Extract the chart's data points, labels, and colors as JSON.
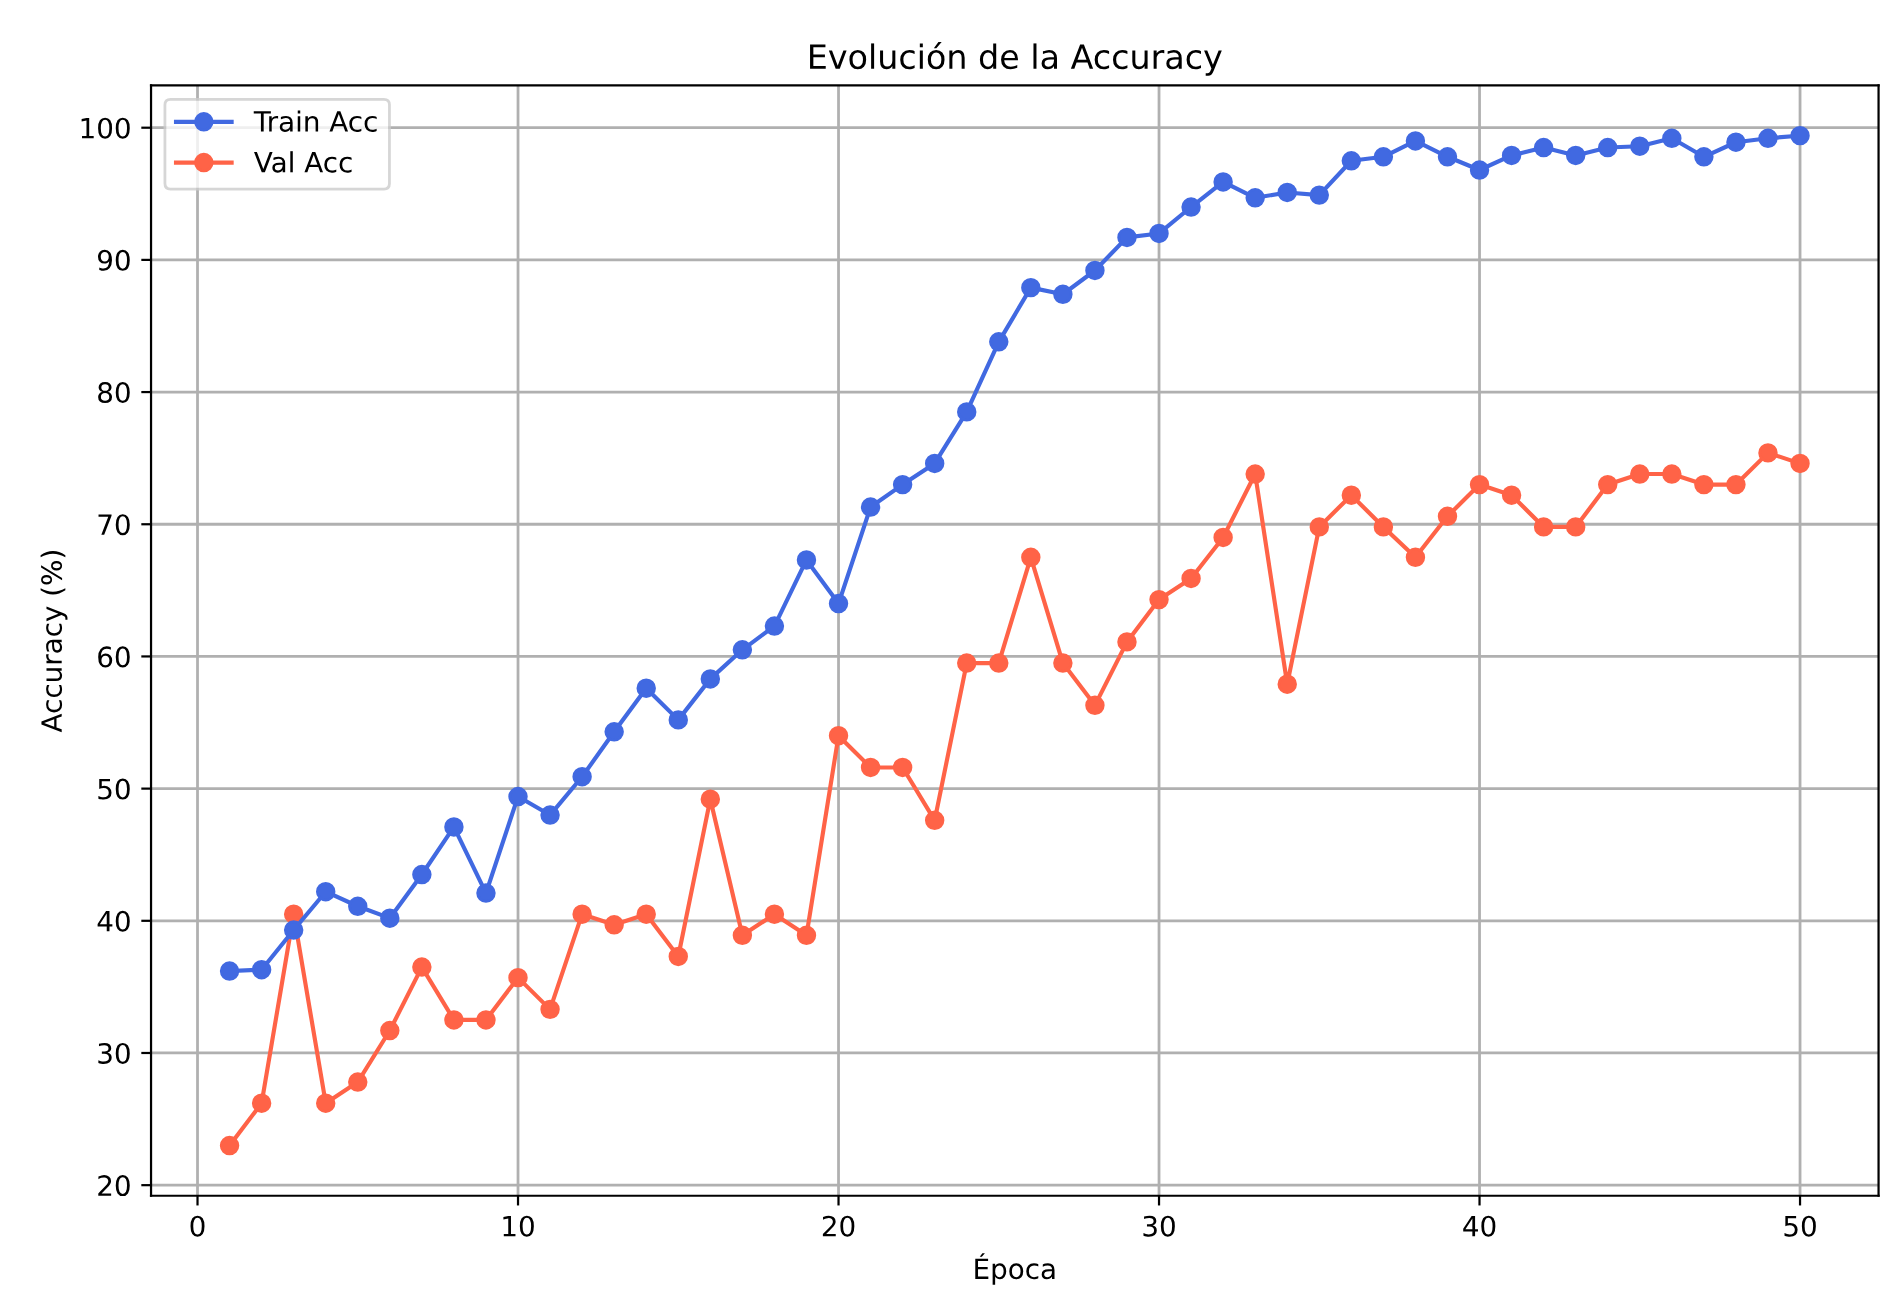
{
  "chart_data": {
    "type": "line",
    "title": "Evolución de la Accuracy",
    "xlabel": "Época",
    "ylabel": "Accuracy (%)",
    "x": [
      1,
      2,
      3,
      4,
      5,
      6,
      7,
      8,
      9,
      10,
      11,
      12,
      13,
      14,
      15,
      16,
      17,
      18,
      19,
      20,
      21,
      22,
      23,
      24,
      25,
      26,
      27,
      28,
      29,
      30,
      31,
      32,
      33,
      34,
      35,
      36,
      37,
      38,
      39,
      40,
      41,
      42,
      43,
      44,
      45,
      46,
      47,
      48,
      49,
      50
    ],
    "series": [
      {
        "name": "Train Acc",
        "color": "#4169e1",
        "values": [
          36.2,
          36.3,
          39.3,
          42.2,
          41.1,
          40.2,
          43.5,
          47.1,
          42.1,
          49.4,
          48.0,
          50.9,
          54.3,
          57.6,
          55.2,
          58.3,
          60.5,
          62.3,
          67.3,
          64.0,
          71.3,
          73.0,
          74.6,
          78.5,
          83.8,
          87.9,
          87.4,
          89.2,
          91.7,
          92.0,
          94.0,
          95.9,
          94.7,
          95.1,
          94.9,
          97.5,
          97.8,
          99.0,
          97.8,
          96.8,
          97.9,
          98.5,
          97.9,
          98.5,
          98.6,
          99.2,
          97.8,
          98.9,
          99.2,
          99.4
        ]
      },
      {
        "name": "Val Acc",
        "color": "#ff6347",
        "values": [
          23.0,
          26.2,
          40.5,
          26.2,
          27.8,
          31.7,
          36.5,
          32.5,
          32.5,
          35.7,
          33.3,
          40.5,
          39.7,
          40.5,
          37.3,
          49.2,
          38.9,
          40.5,
          38.9,
          54.0,
          51.6,
          51.6,
          47.6,
          59.5,
          59.5,
          67.5,
          59.5,
          56.3,
          61.1,
          64.3,
          65.9,
          69.0,
          73.8,
          57.9,
          69.8,
          72.2,
          69.8,
          67.5,
          70.6,
          73.0,
          72.2,
          69.8,
          69.8,
          73.0,
          73.8,
          73.8,
          73.0,
          73.0,
          75.4,
          74.6
        ]
      }
    ],
    "xlim": [
      -1.45,
      52.45
    ],
    "ylim": [
      19.2,
      103.2
    ],
    "xticks": [
      0,
      10,
      20,
      30,
      40,
      50
    ],
    "yticks": [
      20,
      30,
      40,
      50,
      60,
      70,
      80,
      90,
      100
    ],
    "grid": true,
    "legend": "top left",
    "marker": "circle",
    "line_style": "solid"
  }
}
